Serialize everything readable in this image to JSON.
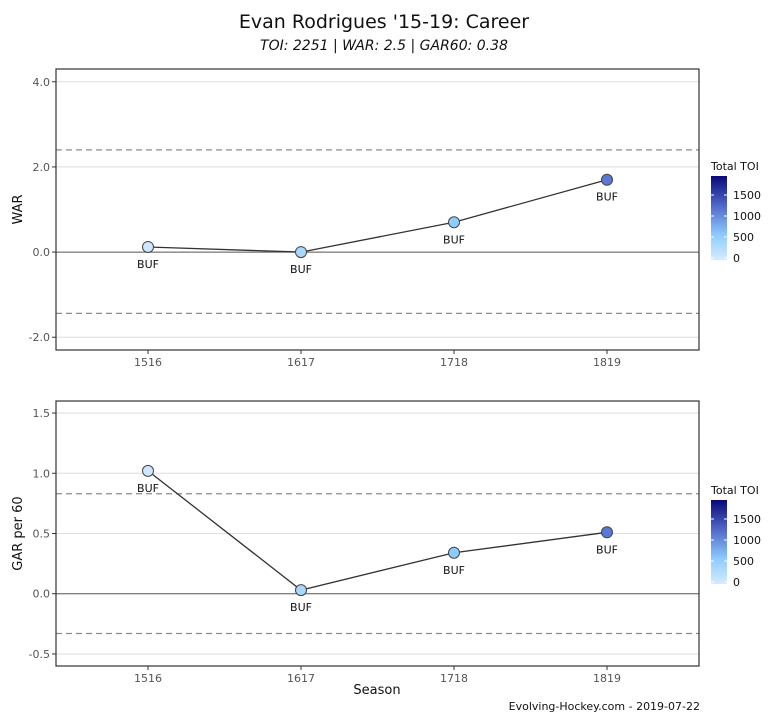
{
  "header": {
    "title": "Evan Rodrigues '15-19: Career",
    "subtitle": "TOI: 2251 | WAR: 2.5 | GAR60: 0.38"
  },
  "caption": "Evolving-Hockey.com - 2019-07-22",
  "colors": {
    "line": "#333333",
    "grid": "#dddddd",
    "zero": "#555555",
    "dashed": "#8c8c8c",
    "scale_low": "#d6ebff",
    "scale_high": "#08087a"
  },
  "legend": {
    "title": "Total TOI",
    "ticks": [
      "1500",
      "1000",
      "500",
      "0"
    ]
  },
  "chart_data": [
    {
      "type": "line",
      "title": "",
      "xlabel": "",
      "ylabel": "WAR",
      "categories": [
        "1516",
        "1617",
        "1718",
        "1819"
      ],
      "values": [
        0.12,
        0.0,
        0.7,
        1.7
      ],
      "point_labels": [
        "BUF",
        "BUF",
        "BUF",
        "BUF"
      ],
      "point_colors": [
        "#cfe6ff",
        "#a9d8ff",
        "#8ecbff",
        "#5b78d4"
      ],
      "yticks": [
        "4.0",
        "2.0",
        "0.0",
        "-2.0"
      ],
      "ylim": [
        -2.3,
        4.3
      ],
      "reference_lines": [
        2.4,
        -1.44
      ],
      "color_legend": {
        "title": "Total TOI",
        "ticks": [
          0,
          500,
          1000,
          1500
        ]
      }
    },
    {
      "type": "line",
      "title": "",
      "xlabel": "Season",
      "ylabel": "GAR per 60",
      "categories": [
        "1516",
        "1617",
        "1718",
        "1819"
      ],
      "values": [
        1.02,
        0.03,
        0.34,
        0.51
      ],
      "point_labels": [
        "BUF",
        "BUF",
        "BUF",
        "BUF"
      ],
      "point_colors": [
        "#cfe6ff",
        "#a9d8ff",
        "#8ecbff",
        "#5b78d4"
      ],
      "yticks": [
        "1.5",
        "1.0",
        "0.5",
        "0.0",
        "-0.5"
      ],
      "ylim": [
        -0.6,
        1.6
      ],
      "reference_lines": [
        0.83,
        -0.33
      ],
      "color_legend": {
        "title": "Total TOI",
        "ticks": [
          0,
          500,
          1000,
          1500
        ]
      }
    }
  ]
}
